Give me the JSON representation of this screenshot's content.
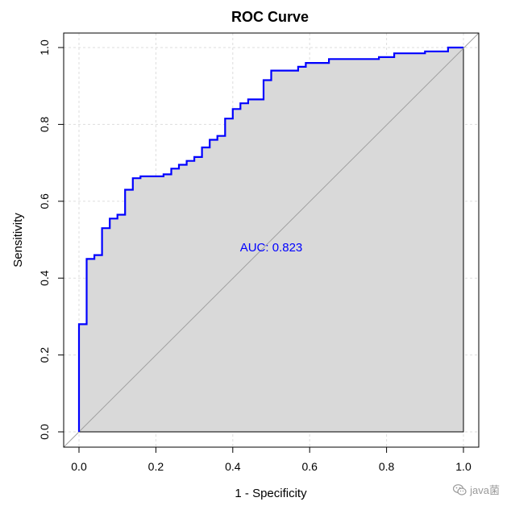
{
  "chart_data": {
    "type": "line",
    "title": "ROC Curve",
    "xlabel": "1 - Specificity",
    "ylabel": "Sensitivity",
    "xlim": [
      0,
      1
    ],
    "ylim": [
      0,
      1
    ],
    "x_ticks": [
      "0.0",
      "0.2",
      "0.4",
      "0.6",
      "0.8",
      "1.0"
    ],
    "y_ticks": [
      "0.0",
      "0.2",
      "0.4",
      "0.6",
      "0.8",
      "1.0"
    ],
    "grid": true,
    "fill_under_curve": true,
    "reference_line": "diagonal",
    "annotation": {
      "text": "AUC: 0.823",
      "x": 0.5,
      "y": 0.48
    },
    "series": [
      {
        "name": "ROC",
        "x": [
          0,
          0,
          0.02,
          0.02,
          0.04,
          0.04,
          0.06,
          0.06,
          0.08,
          0.08,
          0.1,
          0.1,
          0.12,
          0.12,
          0.14,
          0.14,
          0.16,
          0.16,
          0.22,
          0.22,
          0.24,
          0.24,
          0.26,
          0.26,
          0.28,
          0.28,
          0.3,
          0.3,
          0.32,
          0.32,
          0.34,
          0.34,
          0.36,
          0.36,
          0.38,
          0.38,
          0.4,
          0.4,
          0.42,
          0.42,
          0.44,
          0.44,
          0.48,
          0.48,
          0.5,
          0.5,
          0.57,
          0.57,
          0.59,
          0.59,
          0.65,
          0.65,
          0.78,
          0.78,
          0.82,
          0.82,
          0.9,
          0.9,
          0.96,
          0.96,
          1.0,
          1.0
        ],
        "y": [
          0,
          0.28,
          0.28,
          0.45,
          0.45,
          0.46,
          0.46,
          0.53,
          0.53,
          0.555,
          0.555,
          0.565,
          0.565,
          0.63,
          0.63,
          0.66,
          0.66,
          0.665,
          0.665,
          0.67,
          0.67,
          0.685,
          0.685,
          0.695,
          0.695,
          0.705,
          0.705,
          0.715,
          0.715,
          0.74,
          0.74,
          0.76,
          0.76,
          0.77,
          0.77,
          0.815,
          0.815,
          0.84,
          0.84,
          0.855,
          0.855,
          0.865,
          0.865,
          0.915,
          0.915,
          0.94,
          0.94,
          0.95,
          0.95,
          0.96,
          0.96,
          0.97,
          0.97,
          0.975,
          0.975,
          0.985,
          0.985,
          0.99,
          0.99,
          1.0,
          1.0,
          1.0
        ]
      }
    ],
    "colors": {
      "curve": "#0000ff",
      "fill": "#d9d9d9",
      "annotation": "#0000ff",
      "diagonal": "#a0a0a0",
      "grid": "#dddddd"
    }
  },
  "watermark": {
    "text": "java菌",
    "icon": "wechat-icon"
  }
}
